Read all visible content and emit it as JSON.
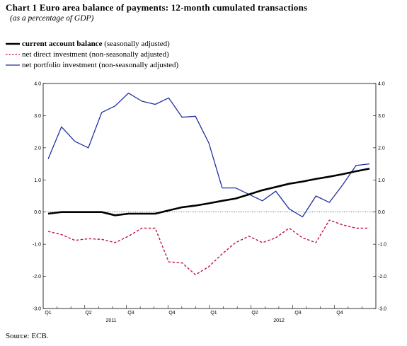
{
  "title": "Chart 1 Euro area balance of payments: 12-month cumulated transactions",
  "subtitle": "(as a percentage of GDP)",
  "source": "Source: ECB.",
  "chart_data": {
    "type": "line",
    "y_ticks": [
      "4.0",
      "3.0",
      "2.0",
      "1.0",
      "0.0",
      "-1.0",
      "-2.0",
      "-3.0"
    ],
    "ylim": [
      -3,
      4
    ],
    "x_quarter_labels": [
      "Q1",
      "Q2",
      "Q3",
      "Q4",
      "Q1",
      "Q2",
      "Q3",
      "Q4"
    ],
    "x_year_labels": [
      "2011",
      "2012"
    ],
    "gridline_at_zero": true,
    "legend_placement": "top-left",
    "series": [
      {
        "name": "current account balance",
        "qualifier": "(seasonally adjusted)",
        "color": "#000000",
        "style": "solid-thick",
        "values": [
          -0.05,
          0.0,
          0.0,
          0.0,
          0.0,
          -0.1,
          -0.05,
          -0.05,
          -0.05,
          0.05,
          0.15,
          0.2,
          0.27,
          0.35,
          0.42,
          0.55,
          0.68,
          0.78,
          0.88,
          0.95,
          1.03,
          1.1,
          1.18,
          1.27,
          1.35
        ]
      },
      {
        "name": "net direct investment",
        "qualifier": "(non-seasonally adjusted)",
        "color": "#c0143c",
        "style": "dashed",
        "values": [
          -0.6,
          -0.7,
          -0.88,
          -0.83,
          -0.85,
          -0.95,
          -0.75,
          -0.5,
          -0.5,
          -1.55,
          -1.58,
          -1.95,
          -1.7,
          -1.3,
          -0.95,
          -0.75,
          -0.95,
          -0.8,
          -0.5,
          -0.8,
          -0.95,
          -0.25,
          -0.4,
          -0.5,
          -0.5
        ]
      },
      {
        "name": "net portfolio investment",
        "qualifier": "(non-seasonally adjusted)",
        "color": "#1f2fa0",
        "style": "solid",
        "values": [
          1.65,
          2.65,
          2.2,
          2.0,
          3.1,
          3.3,
          3.7,
          3.45,
          3.35,
          3.55,
          2.95,
          2.98,
          2.15,
          0.75,
          0.75,
          0.55,
          0.35,
          0.65,
          0.1,
          -0.15,
          0.5,
          0.3,
          0.85,
          1.45,
          1.5
        ]
      }
    ]
  }
}
